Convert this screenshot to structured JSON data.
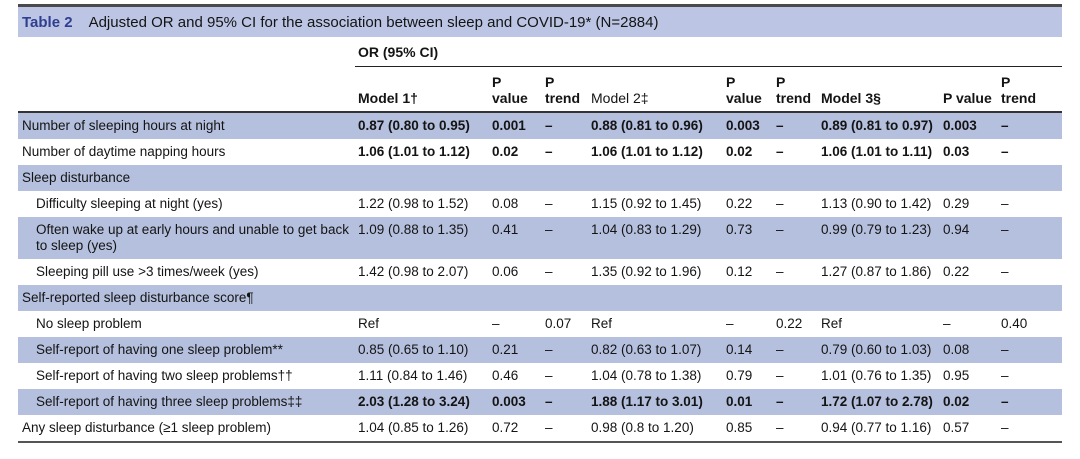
{
  "colors": {
    "title_bar_bg": "#bcc6e4",
    "row_blue": "#b5c0de",
    "table_label_blue": "#2f3e8f",
    "text": "#141414",
    "border_dark": "#4a4a4a"
  },
  "table": {
    "label": "Table 2",
    "title": "Adjusted OR and 95% CI for the association between sleep and COVID-19* (N=2884)",
    "spanner": "OR (95% CI)",
    "columns": [
      {
        "text": "Model 1†",
        "bold": true,
        "nowrap": true
      },
      {
        "text": "P\nvalue",
        "bold": true,
        "nowrap": false
      },
      {
        "text": "P\ntrend",
        "bold": true,
        "nowrap": false
      },
      {
        "text": "Model 2‡",
        "bold": false,
        "nowrap": true
      },
      {
        "text": "P\nvalue",
        "bold": true,
        "nowrap": false
      },
      {
        "text": "P\ntrend",
        "bold": true,
        "nowrap": false
      },
      {
        "text": "Model 3§",
        "bold": true,
        "nowrap": true
      },
      {
        "text": "P value",
        "bold": true,
        "nowrap": true
      },
      {
        "text": "P\ntrend",
        "bold": true,
        "nowrap": false
      }
    ],
    "rows": [
      {
        "label": "Number of sleeping hours at night",
        "section": false,
        "indent": false,
        "bold": true,
        "shade": "blue",
        "cells": [
          "0.87 (0.80 to 0.95)",
          "0.001",
          "–",
          "0.88 (0.81 to 0.96)",
          "0.003",
          "–",
          "0.89 (0.81 to 0.97)",
          "0.003",
          "–"
        ]
      },
      {
        "label": "Number of daytime napping hours",
        "section": false,
        "indent": false,
        "bold": true,
        "shade": "white",
        "cells": [
          "1.06 (1.01 to 1.12)",
          "0.02",
          "–",
          "1.06 (1.01 to 1.12)",
          "0.02",
          "–",
          "1.06 (1.01 to 1.11)",
          "0.03",
          "–"
        ]
      },
      {
        "label": "Sleep disturbance",
        "section": true,
        "indent": false,
        "bold": false,
        "shade": "blue",
        "cells": []
      },
      {
        "label": "Difficulty sleeping at night (yes)",
        "section": false,
        "indent": true,
        "bold": false,
        "shade": "white",
        "cells": [
          "1.22 (0.98 to 1.52)",
          "0.08",
          "–",
          "1.15 (0.92 to 1.45)",
          "0.22",
          "–",
          "1.13 (0.90 to 1.42)",
          "0.29",
          "–"
        ]
      },
      {
        "label": "Often wake up at early hours and unable to get back to sleep (yes)",
        "section": false,
        "indent": true,
        "bold": false,
        "shade": "blue",
        "cells": [
          "1.09 (0.88 to 1.35)",
          "0.41",
          "–",
          "1.04 (0.83 to 1.29)",
          "0.73",
          "–",
          "0.99 (0.79 to 1.23)",
          "0.94",
          "–"
        ]
      },
      {
        "label": "Sleeping pill use >3 times/week (yes)",
        "section": false,
        "indent": true,
        "bold": false,
        "shade": "white",
        "cells": [
          "1.42 (0.98 to 2.07)",
          "0.06",
          "–",
          "1.35 (0.92 to 1.96)",
          "0.12",
          "–",
          "1.27 (0.87 to 1.86)",
          "0.22",
          "–"
        ]
      },
      {
        "label": "Self-reported sleep disturbance score¶",
        "section": true,
        "indent": false,
        "bold": false,
        "shade": "blue",
        "cells": []
      },
      {
        "label": "No sleep problem",
        "section": false,
        "indent": true,
        "bold": false,
        "shade": "white",
        "cells": [
          "Ref",
          "–",
          "0.07",
          "Ref",
          "–",
          "0.22",
          "Ref",
          "–",
          "0.40"
        ]
      },
      {
        "label": "Self-report of having one sleep problem**",
        "section": false,
        "indent": true,
        "bold": false,
        "shade": "blue",
        "cells": [
          "0.85 (0.65 to 1.10)",
          "0.21",
          "–",
          "0.82 (0.63 to 1.07)",
          "0.14",
          "–",
          "0.79 (0.60 to 1.03)",
          "0.08",
          "–"
        ]
      },
      {
        "label": "Self-report of having two sleep problems††",
        "section": false,
        "indent": true,
        "bold": false,
        "shade": "white",
        "cells": [
          "1.11 (0.84 to 1.46)",
          "0.46",
          "–",
          "1.04 (0.78 to 1.38)",
          "0.79",
          "–",
          "1.01 (0.76 to 1.35)",
          "0.95",
          "–"
        ]
      },
      {
        "label": "Self-report of having three sleep problems‡‡",
        "section": false,
        "indent": true,
        "bold": true,
        "shade": "blue",
        "cells": [
          "2.03 (1.28 to 3.24)",
          "0.003",
          "–",
          "1.88 (1.17 to 3.01)",
          "0.01",
          "–",
          "1.72 (1.07 to 2.78)",
          "0.02",
          "–"
        ]
      },
      {
        "label": "Any sleep disturbance (≥1 sleep problem)",
        "section": false,
        "indent": false,
        "bold": false,
        "shade": "white",
        "cells": [
          "1.04 (0.85 to 1.26)",
          "0.72",
          "–",
          "0.98 (0.8 to 1.20)",
          "0.85",
          "–",
          "0.94 (0.77 to 1.16)",
          "0.57",
          "–"
        ]
      }
    ]
  }
}
